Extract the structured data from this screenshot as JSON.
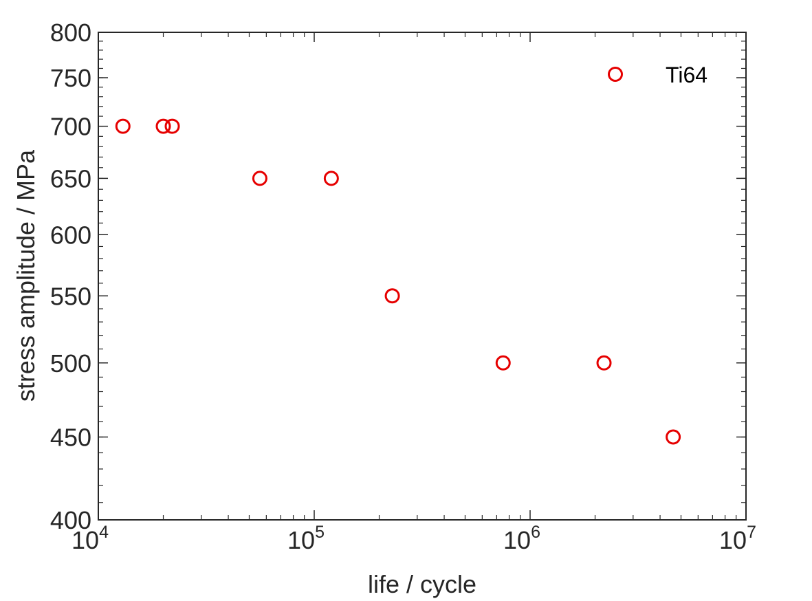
{
  "chart_data": {
    "type": "scatter",
    "title": "",
    "xlabel": "life / cycle",
    "ylabel": "stress amplitude / MPa",
    "xscale": "log",
    "yscale": "log",
    "xlim": [
      10000,
      10000000
    ],
    "ylim": [
      400,
      800
    ],
    "x_ticks": [
      {
        "base": "10",
        "exp": "4"
      },
      {
        "base": "10",
        "exp": "5"
      },
      {
        "base": "10",
        "exp": "6"
      },
      {
        "base": "10",
        "exp": "7"
      }
    ],
    "y_ticks": [
      "400",
      "450",
      "500",
      "550",
      "600",
      "650",
      "700",
      "750",
      "800"
    ],
    "grid": false,
    "legend_position": "top-right",
    "series": [
      {
        "name": "Ti64",
        "color": "#e60000",
        "marker": "open-circle",
        "points": [
          {
            "x": 13000,
            "y": 700
          },
          {
            "x": 20000,
            "y": 700
          },
          {
            "x": 22000,
            "y": 700
          },
          {
            "x": 56000,
            "y": 650
          },
          {
            "x": 120000,
            "y": 650
          },
          {
            "x": 230000,
            "y": 550
          },
          {
            "x": 750000,
            "y": 500
          },
          {
            "x": 2200000,
            "y": 500
          },
          {
            "x": 4600000,
            "y": 450
          }
        ]
      }
    ]
  }
}
